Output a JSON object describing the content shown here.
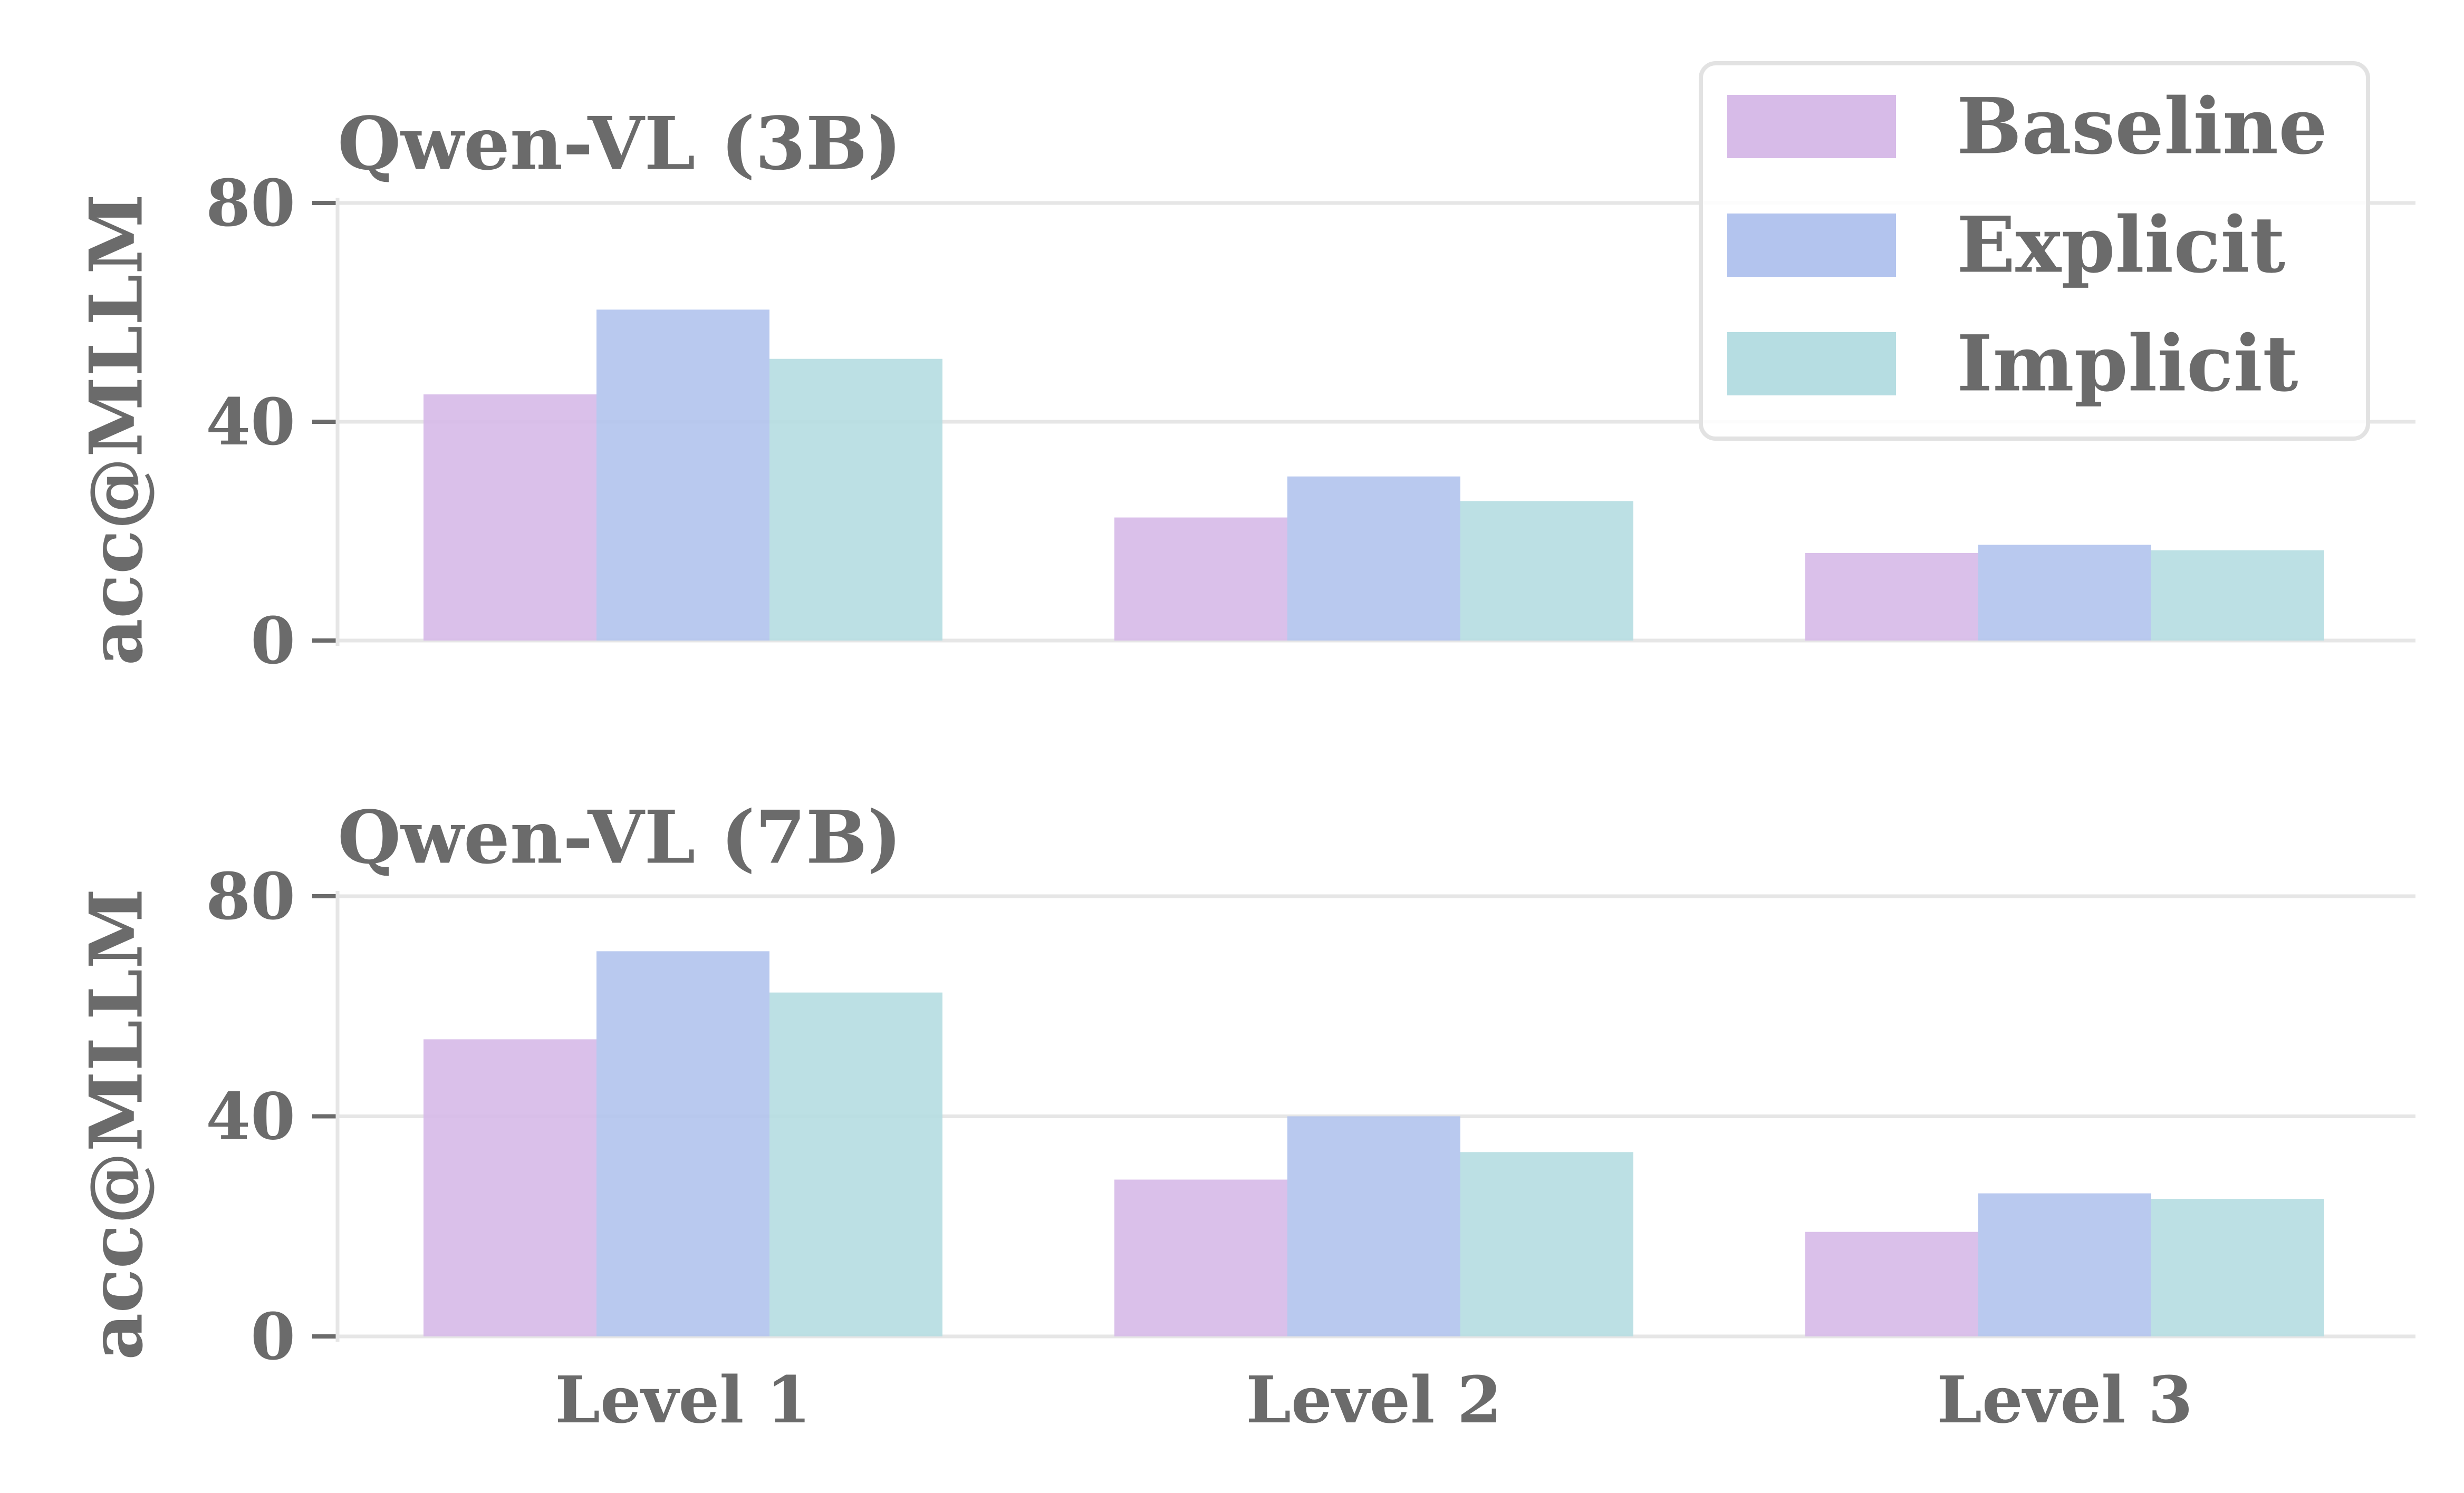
{
  "chart_data": [
    {
      "type": "bar",
      "title": "Qwen-VL (3B)",
      "ylabel": "acc@MLLM",
      "categories": [
        "Level 1",
        "Level 2",
        "Level 3"
      ],
      "yticks": [
        "0",
        "40",
        "80"
      ],
      "ylim": [
        0,
        80
      ],
      "grid": true,
      "legend": "top-right",
      "series": [
        {
          "name": "Baseline",
          "values": [
            45,
            22.5,
            16
          ],
          "color": "#d7bbe8"
        },
        {
          "name": "Explicit",
          "values": [
            60.5,
            30,
            17.5
          ],
          "color": "#b3c4ee"
        },
        {
          "name": "Implicit",
          "values": [
            51.5,
            25.5,
            16.5
          ],
          "color": "#b6dde2"
        }
      ]
    },
    {
      "type": "bar",
      "title": "Qwen-VL (7B)",
      "ylabel": "acc@MLLM",
      "categories": [
        "Level 1",
        "Level 2",
        "Level 3"
      ],
      "yticks": [
        "0",
        "40",
        "80"
      ],
      "ylim": [
        0,
        80
      ],
      "grid": true,
      "series": [
        {
          "name": "Baseline",
          "values": [
            54,
            28.5,
            19
          ],
          "color": "#d7bbe8"
        },
        {
          "name": "Explicit",
          "values": [
            70,
            40,
            26
          ],
          "color": "#b3c4ee"
        },
        {
          "name": "Implicit",
          "values": [
            62.5,
            33.5,
            25
          ],
          "color": "#b6dde2"
        }
      ]
    }
  ]
}
